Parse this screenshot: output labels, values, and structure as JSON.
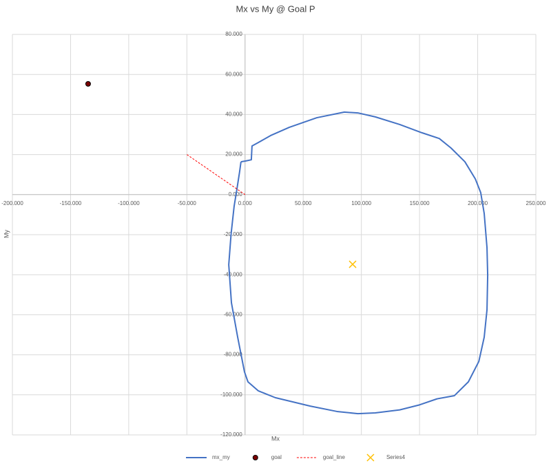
{
  "chart_data": {
    "type": "scatter",
    "title": "Mx vs My @ Goal P",
    "x_label": "Mx",
    "y_label": "My",
    "xlim": [
      -200,
      250
    ],
    "ylim": [
      -120,
      80
    ],
    "xticks": [
      {
        "value": -200,
        "label": "-200.000"
      },
      {
        "value": -150,
        "label": "-150.000"
      },
      {
        "value": -100,
        "label": "-100.000"
      },
      {
        "value": -50,
        "label": "-50.000"
      },
      {
        "value": 0,
        "label": "0.000"
      },
      {
        "value": 50,
        "label": "50.000"
      },
      {
        "value": 100,
        "label": "100.000"
      },
      {
        "value": 150,
        "label": "150.000"
      },
      {
        "value": 200,
        "label": "200.000"
      },
      {
        "value": 250,
        "label": "250.000"
      }
    ],
    "yticks": [
      {
        "value": -120,
        "label": "-120.000"
      },
      {
        "value": -100,
        "label": "-100.000"
      },
      {
        "value": -80,
        "label": "-80.000"
      },
      {
        "value": -60,
        "label": "-60.000"
      },
      {
        "value": -40,
        "label": "-40.000"
      },
      {
        "value": -20,
        "label": "-20.000"
      },
      {
        "value": 0,
        "label": "0.000"
      },
      {
        "value": 20,
        "label": "20.000"
      },
      {
        "value": 40,
        "label": "40.000"
      },
      {
        "value": 60,
        "label": "60.000"
      },
      {
        "value": 80,
        "label": "80.000"
      }
    ],
    "grid": true,
    "legend": "bottom",
    "series": [
      {
        "name": "mx_my",
        "color": "#4472c4",
        "line": true,
        "dash": false,
        "marker": "none",
        "x": [
          -3.5,
          0.7,
          5.4,
          6,
          11.4,
          22,
          38,
          61.7,
          85.4,
          97,
          112,
          133,
          152,
          167,
          177,
          189,
          198,
          202.6,
          205.6,
          208,
          208.6,
          208,
          205.6,
          201,
          192,
          180,
          165,
          150,
          133,
          112,
          97,
          79,
          56,
          26,
          11.4,
          2.5,
          -0.5,
          -6.4,
          -11.7,
          -14,
          -12,
          -9.4,
          -7,
          -4.7,
          -3.5
        ],
        "y": [
          16.4,
          16.8,
          17.4,
          24.3,
          26,
          29.5,
          33.6,
          38.4,
          41.2,
          40.8,
          38.8,
          35,
          30.9,
          28,
          23.3,
          16.4,
          7.8,
          1,
          -9.4,
          -26.5,
          -40.3,
          -57.5,
          -71.2,
          -83.3,
          -93.5,
          -100.4,
          -102,
          -105,
          -107.5,
          -109,
          -109.4,
          -108.3,
          -105.6,
          -101.4,
          -98,
          -93.5,
          -88.5,
          -71,
          -54,
          -35,
          -19.7,
          -5.9,
          2.7,
          11.3,
          16.4
        ]
      },
      {
        "name": "goal",
        "color": "#7b0000",
        "line": false,
        "dash": false,
        "marker": "circle",
        "x": [
          -134.9
        ],
        "y": [
          55.3
        ]
      },
      {
        "name": "goal_line",
        "color": "#ff0000",
        "line": true,
        "dash": true,
        "marker": "none",
        "x": [
          -50,
          0
        ],
        "y": [
          20,
          0
        ]
      },
      {
        "name": "Series4",
        "color": "#ffc000",
        "line": false,
        "dash": false,
        "marker": "x",
        "x": [
          92.5
        ],
        "y": [
          -34.8
        ]
      }
    ]
  }
}
